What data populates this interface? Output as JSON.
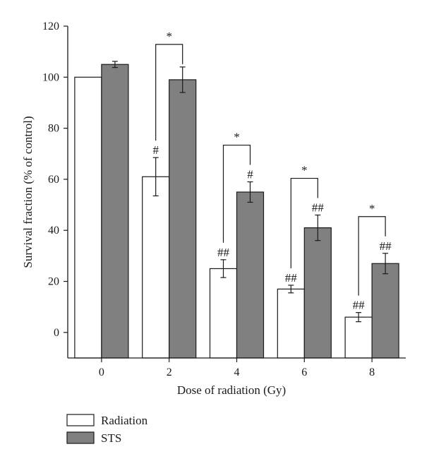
{
  "chart_data": {
    "type": "bar",
    "xlabel": "Dose of radiation (Gy)",
    "ylabel": "Survival fraction (% of control)",
    "ylim": [
      -10,
      120
    ],
    "yticks": [
      0,
      20,
      40,
      60,
      80,
      100,
      120
    ],
    "categories": [
      "0",
      "2",
      "4",
      "6",
      "8"
    ],
    "series": [
      {
        "name": "Radiation",
        "color": "#ffffff",
        "values": [
          100,
          61,
          25,
          17,
          6
        ],
        "errors": [
          0,
          7.5,
          3.5,
          1.5,
          1.8
        ],
        "marks": [
          "",
          "#",
          "##",
          "##",
          "##"
        ]
      },
      {
        "name": "STS",
        "color": "#808080",
        "values": [
          105,
          99,
          55,
          41,
          27
        ],
        "errors": [
          1.2,
          5,
          4,
          5,
          4
        ],
        "marks": [
          "",
          "",
          "#",
          "##",
          "##"
        ]
      }
    ],
    "comparisons": [
      {
        "category": "2",
        "label": "*"
      },
      {
        "category": "4",
        "label": "*"
      },
      {
        "category": "6",
        "label": "*"
      },
      {
        "category": "8",
        "label": "*"
      }
    ],
    "legend_position": "bottom-left",
    "grid": false
  }
}
